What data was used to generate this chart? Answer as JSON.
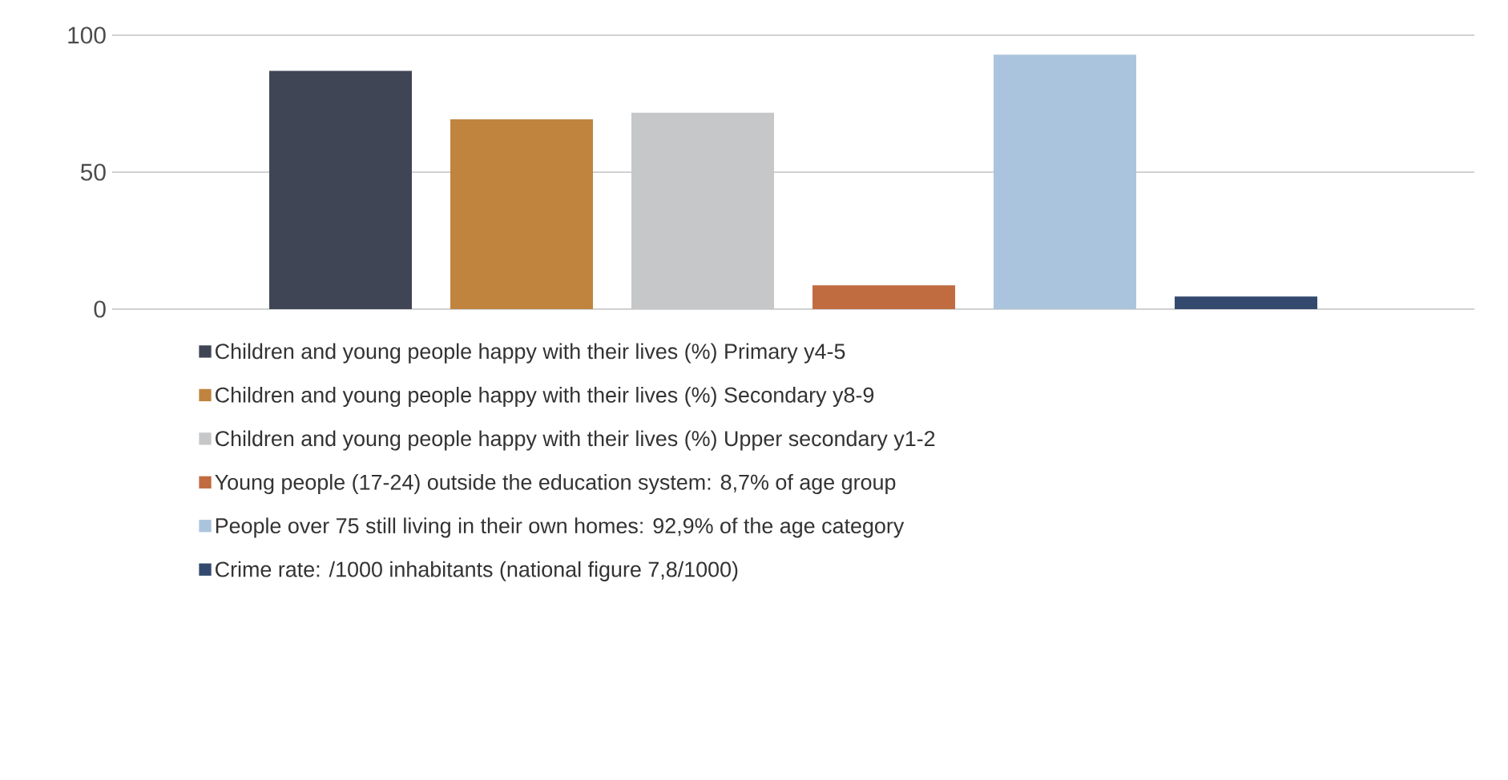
{
  "chart_data": {
    "type": "bar",
    "categories": [
      null
    ],
    "series": [
      {
        "name": "Children and young people happy with their lives  (%) Primary y4-5",
        "color": "#404556",
        "values": [
          87
        ]
      },
      {
        "name": "Children and young people happy with their lives  (%)  Secondary y8-9",
        "color": "#c0843f",
        "values": [
          69.3
        ]
      },
      {
        "name": "Children and young people happy with their lives  (%) Upper secondary y1-2",
        "color": "#c6c7c9",
        "values": [
          71.7
        ]
      },
      {
        "name": "Young people (17-24) outside the education system: 8,7% of age group",
        "color": "#c06c40",
        "values": [
          8.7
        ]
      },
      {
        "name": "People over 75 still living in their own homes: 92,9% of the age category",
        "color": "#abc4dd",
        "values": [
          92.9
        ]
      },
      {
        "name": "Crime rate: /1000 inhabitants (national figure 7,8/1000)",
        "color": "#34496e",
        "values": [
          4.6
        ]
      }
    ],
    "ylim": [
      0,
      100
    ],
    "yticks": [
      0,
      50,
      100
    ],
    "grid": "y",
    "legend": "bottom"
  }
}
